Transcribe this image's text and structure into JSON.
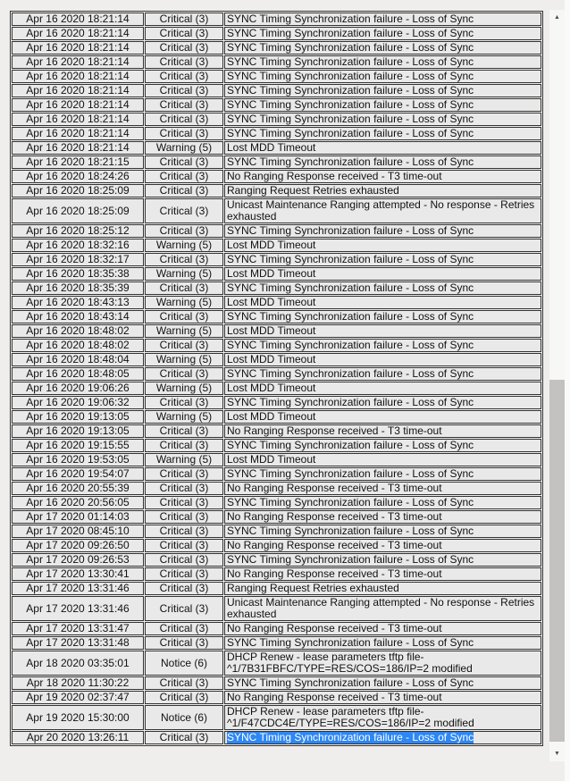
{
  "page": {
    "background": "#efeeec",
    "cell_background": "#e9e9e9",
    "border_color": "#333333",
    "selection_background": "#2d87f5",
    "selection_text_color": "#ffffff"
  },
  "event_log_table": {
    "rows": [
      {
        "time": "Apr 16 2020 18:21:14",
        "priority": "Critical (3)",
        "description": "SYNC Timing Synchronization failure - Loss of Sync",
        "selected": false
      },
      {
        "time": "Apr 16 2020 18:21:14",
        "priority": "Critical (3)",
        "description": "SYNC Timing Synchronization failure - Loss of Sync",
        "selected": false
      },
      {
        "time": "Apr 16 2020 18:21:14",
        "priority": "Critical (3)",
        "description": "SYNC Timing Synchronization failure - Loss of Sync",
        "selected": false
      },
      {
        "time": "Apr 16 2020 18:21:14",
        "priority": "Critical (3)",
        "description": "SYNC Timing Synchronization failure - Loss of Sync",
        "selected": false
      },
      {
        "time": "Apr 16 2020 18:21:14",
        "priority": "Critical (3)",
        "description": "SYNC Timing Synchronization failure - Loss of Sync",
        "selected": false
      },
      {
        "time": "Apr 16 2020 18:21:14",
        "priority": "Critical (3)",
        "description": "SYNC Timing Synchronization failure - Loss of Sync",
        "selected": false
      },
      {
        "time": "Apr 16 2020 18:21:14",
        "priority": "Critical (3)",
        "description": "SYNC Timing Synchronization failure - Loss of Sync",
        "selected": false
      },
      {
        "time": "Apr 16 2020 18:21:14",
        "priority": "Critical (3)",
        "description": "SYNC Timing Synchronization failure - Loss of Sync",
        "selected": false
      },
      {
        "time": "Apr 16 2020 18:21:14",
        "priority": "Critical (3)",
        "description": "SYNC Timing Synchronization failure - Loss of Sync",
        "selected": false
      },
      {
        "time": "Apr 16 2020 18:21:14",
        "priority": "Warning (5)",
        "description": "Lost MDD Timeout",
        "selected": false
      },
      {
        "time": "Apr 16 2020 18:21:15",
        "priority": "Critical (3)",
        "description": "SYNC Timing Synchronization failure - Loss of Sync",
        "selected": false
      },
      {
        "time": "Apr 16 2020 18:24:26",
        "priority": "Critical (3)",
        "description": "No Ranging Response received - T3 time-out",
        "selected": false
      },
      {
        "time": "Apr 16 2020 18:25:09",
        "priority": "Critical (3)",
        "description": "Ranging Request Retries exhausted",
        "selected": false
      },
      {
        "time": "Apr 16 2020 18:25:09",
        "priority": "Critical (3)",
        "description": "Unicast Maintenance Ranging attempted - No response - Retries exhausted",
        "selected": false
      },
      {
        "time": "Apr 16 2020 18:25:12",
        "priority": "Critical (3)",
        "description": "SYNC Timing Synchronization failure - Loss of Sync",
        "selected": false
      },
      {
        "time": "Apr 16 2020 18:32:16",
        "priority": "Warning (5)",
        "description": "Lost MDD Timeout",
        "selected": false
      },
      {
        "time": "Apr 16 2020 18:32:17",
        "priority": "Critical (3)",
        "description": "SYNC Timing Synchronization failure - Loss of Sync",
        "selected": false
      },
      {
        "time": "Apr 16 2020 18:35:38",
        "priority": "Warning (5)",
        "description": "Lost MDD Timeout",
        "selected": false
      },
      {
        "time": "Apr 16 2020 18:35:39",
        "priority": "Critical (3)",
        "description": "SYNC Timing Synchronization failure - Loss of Sync",
        "selected": false
      },
      {
        "time": "Apr 16 2020 18:43:13",
        "priority": "Warning (5)",
        "description": "Lost MDD Timeout",
        "selected": false
      },
      {
        "time": "Apr 16 2020 18:43:14",
        "priority": "Critical (3)",
        "description": "SYNC Timing Synchronization failure - Loss of Sync",
        "selected": false
      },
      {
        "time": "Apr 16 2020 18:48:02",
        "priority": "Warning (5)",
        "description": "Lost MDD Timeout",
        "selected": false
      },
      {
        "time": "Apr 16 2020 18:48:02",
        "priority": "Critical (3)",
        "description": "SYNC Timing Synchronization failure - Loss of Sync",
        "selected": false
      },
      {
        "time": "Apr 16 2020 18:48:04",
        "priority": "Warning (5)",
        "description": "Lost MDD Timeout",
        "selected": false
      },
      {
        "time": "Apr 16 2020 18:48:05",
        "priority": "Critical (3)",
        "description": "SYNC Timing Synchronization failure - Loss of Sync",
        "selected": false
      },
      {
        "time": "Apr 16 2020 19:06:26",
        "priority": "Warning (5)",
        "description": "Lost MDD Timeout",
        "selected": false
      },
      {
        "time": "Apr 16 2020 19:06:32",
        "priority": "Critical (3)",
        "description": "SYNC Timing Synchronization failure - Loss of Sync",
        "selected": false
      },
      {
        "time": "Apr 16 2020 19:13:05",
        "priority": "Warning (5)",
        "description": "Lost MDD Timeout",
        "selected": false
      },
      {
        "time": "Apr 16 2020 19:13:05",
        "priority": "Critical (3)",
        "description": "No Ranging Response received - T3 time-out",
        "selected": false
      },
      {
        "time": "Apr 16 2020 19:15:55",
        "priority": "Critical (3)",
        "description": "SYNC Timing Synchronization failure - Loss of Sync",
        "selected": false
      },
      {
        "time": "Apr 16 2020 19:53:05",
        "priority": "Warning (5)",
        "description": "Lost MDD Timeout",
        "selected": false
      },
      {
        "time": "Apr 16 2020 19:54:07",
        "priority": "Critical (3)",
        "description": "SYNC Timing Synchronization failure - Loss of Sync",
        "selected": false
      },
      {
        "time": "Apr 16 2020 20:55:39",
        "priority": "Critical (3)",
        "description": "No Ranging Response received - T3 time-out",
        "selected": false
      },
      {
        "time": "Apr 16 2020 20:56:05",
        "priority": "Critical (3)",
        "description": "SYNC Timing Synchronization failure - Loss of Sync",
        "selected": false
      },
      {
        "time": "Apr 17 2020 01:14:03",
        "priority": "Critical (3)",
        "description": "No Ranging Response received - T3 time-out",
        "selected": false
      },
      {
        "time": "Apr 17 2020 08:45:10",
        "priority": "Critical (3)",
        "description": "SYNC Timing Synchronization failure - Loss of Sync",
        "selected": false
      },
      {
        "time": "Apr 17 2020 09:26:50",
        "priority": "Critical (3)",
        "description": "No Ranging Response received - T3 time-out",
        "selected": false
      },
      {
        "time": "Apr 17 2020 09:26:53",
        "priority": "Critical (3)",
        "description": "SYNC Timing Synchronization failure - Loss of Sync",
        "selected": false
      },
      {
        "time": "Apr 17 2020 13:30:41",
        "priority": "Critical (3)",
        "description": "No Ranging Response received - T3 time-out",
        "selected": false
      },
      {
        "time": "Apr 17 2020 13:31:46",
        "priority": "Critical (3)",
        "description": "Ranging Request Retries exhausted",
        "selected": false
      },
      {
        "time": "Apr 17 2020 13:31:46",
        "priority": "Critical (3)",
        "description": "Unicast Maintenance Ranging attempted - No response - Retries exhausted",
        "selected": false
      },
      {
        "time": "Apr 17 2020 13:31:47",
        "priority": "Critical (3)",
        "description": "No Ranging Response received - T3 time-out",
        "selected": false
      },
      {
        "time": "Apr 17 2020 13:31:48",
        "priority": "Critical (3)",
        "description": "SYNC Timing Synchronization failure - Loss of Sync",
        "selected": false
      },
      {
        "time": "Apr 18 2020 03:35:01",
        "priority": "Notice (6)",
        "description": "DHCP Renew - lease parameters tftp file-^1/7B31FBFC/TYPE=RES/COS=186/IP=2 modified",
        "selected": false
      },
      {
        "time": "Apr 18 2020 11:30:22",
        "priority": "Critical (3)",
        "description": "SYNC Timing Synchronization failure - Loss of Sync",
        "selected": false
      },
      {
        "time": "Apr 19 2020 02:37:47",
        "priority": "Critical (3)",
        "description": "No Ranging Response received - T3 time-out",
        "selected": false
      },
      {
        "time": "Apr 19 2020 15:30:00",
        "priority": "Notice (6)",
        "description": "DHCP Renew - lease parameters tftp file-^1/F47CDC4E/TYPE=RES/COS=186/IP=2 modified",
        "selected": false
      },
      {
        "time": "Apr 20 2020 13:26:11",
        "priority": "Critical (3)",
        "description": "SYNC Timing Synchronization failure - Loss of Sync",
        "selected": true
      }
    ]
  },
  "scrollbar": {
    "up_icon": "▲",
    "down_icon": "▼",
    "track_color": "#f7f7f6",
    "thumb_color": "#c3c2c1"
  }
}
